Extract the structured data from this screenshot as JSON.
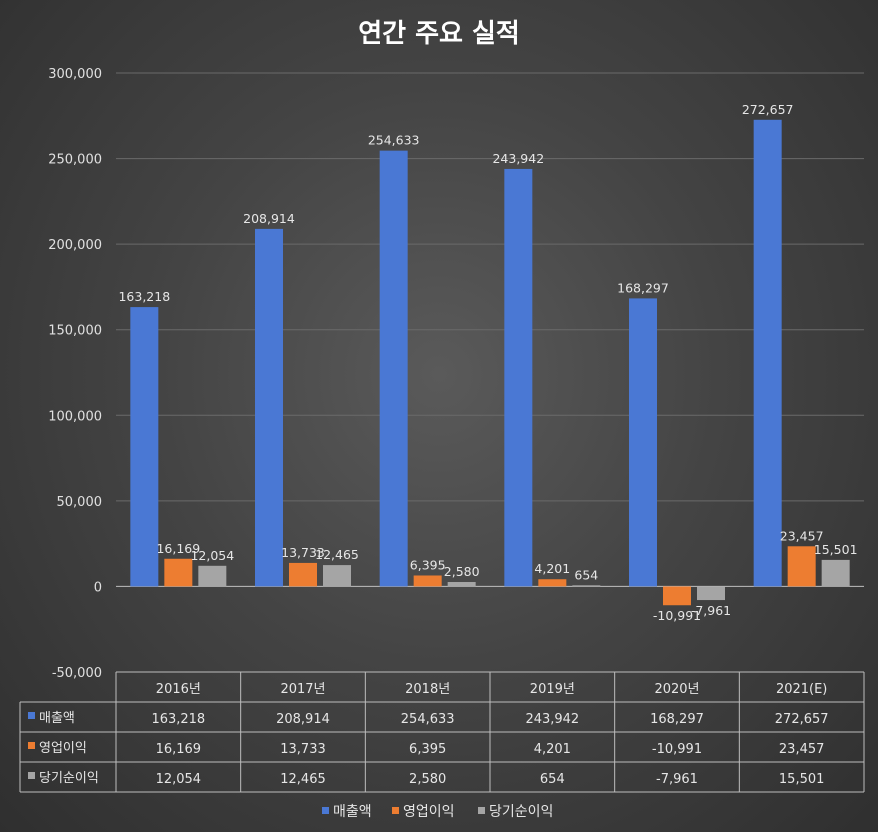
{
  "colors": {
    "series": [
      "#4a78d4",
      "#ed7d31",
      "#a5a5a5"
    ],
    "grid": "#6a6a6a",
    "axis": "#bfbfbf",
    "table_border": "#bdbdbd"
  },
  "chart_data": {
    "type": "bar",
    "title": "연간 주요 실적",
    "categories": [
      "2016년",
      "2017년",
      "2018년",
      "2019년",
      "2020년",
      "2021(E)"
    ],
    "series": [
      {
        "name": "매출액",
        "values": [
          163218,
          208914,
          254633,
          243942,
          168297,
          272657
        ],
        "labels": [
          "163,218",
          "208,914",
          "254,633",
          "243,942",
          "168,297",
          "272,657"
        ]
      },
      {
        "name": "영업이익",
        "values": [
          16169,
          13733,
          6395,
          4201,
          -10991,
          23457
        ],
        "labels": [
          "16,169",
          "13,733",
          "6,395",
          "4,201",
          "-10,991",
          "23,457"
        ]
      },
      {
        "name": "당기순이익",
        "values": [
          12054,
          12465,
          2580,
          654,
          -7961,
          15501
        ],
        "labels": [
          "12,054",
          "12,465",
          "2,580",
          "654",
          "-7,961",
          "15,501"
        ]
      }
    ],
    "ylim": [
      -50000,
      300000
    ],
    "yticks": [
      300000,
      250000,
      200000,
      150000,
      100000,
      50000,
      0,
      -50000
    ],
    "ytick_labels": [
      "300,000",
      "250,000",
      "200,000",
      "150,000",
      "100,000",
      "50,000",
      "0",
      "-50,000"
    ],
    "grid": true,
    "legend": "bottom",
    "data_table": true
  }
}
